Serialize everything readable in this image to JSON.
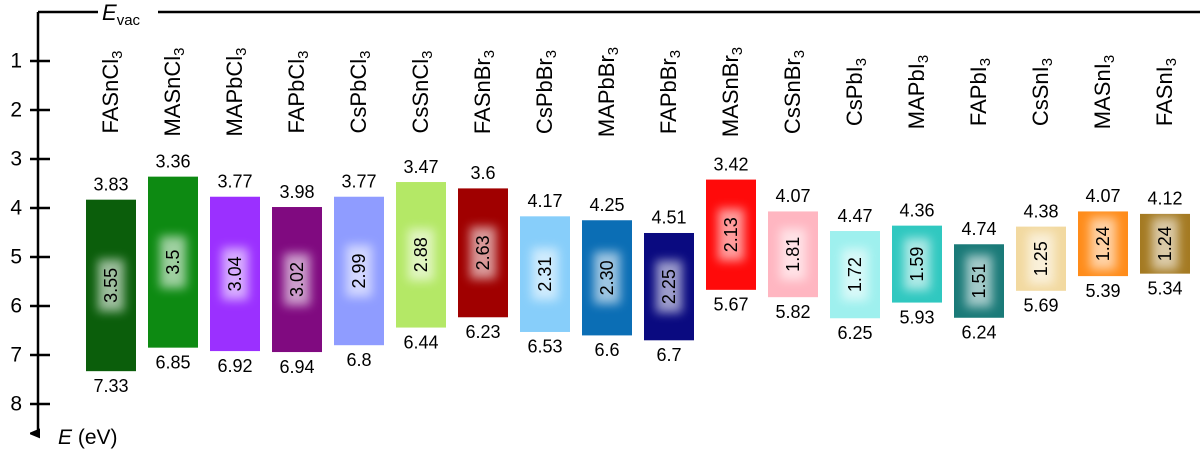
{
  "chart_data": {
    "type": "band-diagram",
    "annotation": "Evac",
    "y_label": "E (eV)",
    "categories": [
      "FASnCl3",
      "MASnCl3",
      "MAPbCl3",
      "FAPbCl3",
      "CsPbCl3",
      "CsSnCl3",
      "FASnBr3",
      "CsPbBr3",
      "MAPbBr3",
      "FAPbBr3",
      "MASnBr3",
      "CsSnBr3",
      "CsPbI3",
      "MAPbI3",
      "FAPbI3",
      "CsSnI3",
      "MASnI3",
      "FASnI3"
    ],
    "colors": [
      "#0b5e0b",
      "#0d8a12",
      "#9b30ff",
      "#800a80",
      "#8f9cff",
      "#b4e866",
      "#a00000",
      "#87cefa",
      "#0b6eb5",
      "#0a0a80",
      "#ff0a0a",
      "#ffb6c1",
      "#9ef0ee",
      "#30c8c0",
      "#1a7a78",
      "#f2d9a0",
      "#ff8c1a",
      "#a47a22"
    ],
    "top": [
      3.83,
      3.36,
      3.77,
      3.98,
      3.77,
      3.47,
      3.6,
      4.17,
      4.25,
      4.51,
      3.42,
      4.07,
      4.47,
      4.36,
      4.74,
      4.38,
      4.07,
      4.12
    ],
    "bottom": [
      7.33,
      6.85,
      6.92,
      6.94,
      6.8,
      6.44,
      6.23,
      6.53,
      6.6,
      6.7,
      5.67,
      5.82,
      6.25,
      5.93,
      6.24,
      5.69,
      5.39,
      5.34
    ],
    "gap": [
      3.55,
      3.5,
      3.04,
      3.02,
      2.99,
      2.88,
      2.63,
      2.31,
      2.3,
      2.25,
      2.13,
      1.81,
      1.72,
      1.59,
      1.51,
      1.25,
      1.24,
      1.24
    ],
    "gap_labels": [
      "3.55",
      "3.5",
      "3.04",
      "3.02",
      "2.99",
      "2.88",
      "2.63",
      "2.31",
      "2.30",
      "2.25",
      "2.13",
      "1.81",
      "1.72",
      "1.59",
      "1.51",
      "1.25",
      "1.24",
      "1.24"
    ],
    "ylim": [
      0,
      8.6
    ],
    "yticks": [
      1,
      2,
      3,
      4,
      5,
      6,
      7,
      8
    ],
    "inverted_y": true
  }
}
